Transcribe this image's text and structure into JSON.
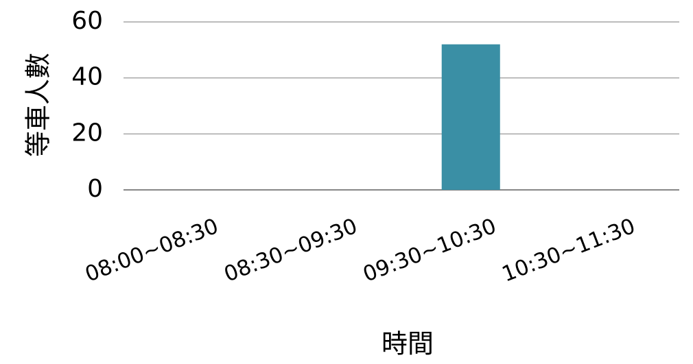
{
  "chart_data": {
    "type": "bar",
    "title": "",
    "xlabel": "時間",
    "ylabel": "等車人數",
    "categories": [
      "08:00~08:30",
      "08:30~09:30",
      "09:30~10:30",
      "10:30~11:30"
    ],
    "series": [
      {
        "values": [
          0,
          0,
          52,
          0
        ],
        "color": "#3a8fa5"
      }
    ],
    "ylim": [
      0,
      60
    ],
    "yticks": [
      "0",
      "20",
      "40",
      "60"
    ],
    "grid": true,
    "legend": "none"
  }
}
